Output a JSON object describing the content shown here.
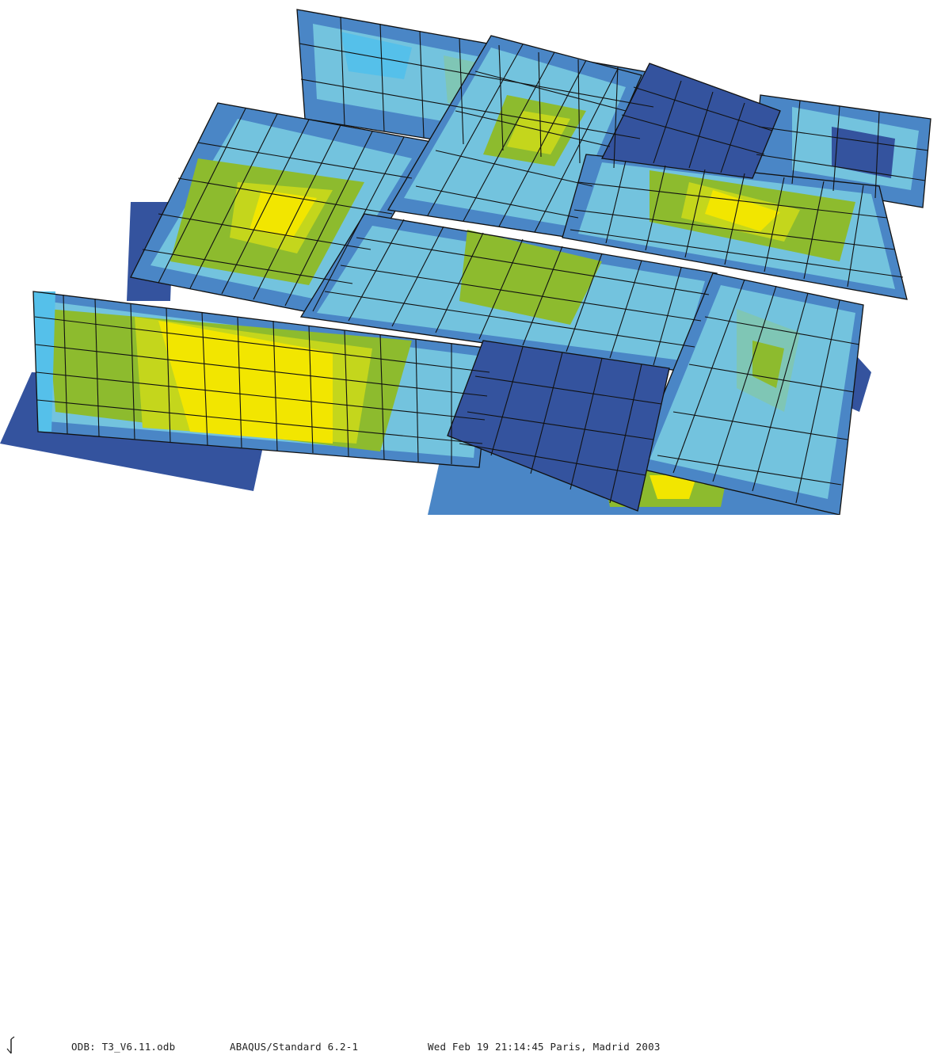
{
  "status": {
    "odb": "ODB: T3_V6.11.odb",
    "solver": "ABAQUS/Standard 6.2-1",
    "timestamp": "Wed Feb 19 21:14:45 Paris, Madrid 2003"
  },
  "legend_colors": {
    "deep_blue": "#34539e",
    "mid_blue": "#4a86c6",
    "light_blue": "#73c3de",
    "cyan_blue": "#55c0ea",
    "teal": "#7fc6b5",
    "green": "#8dbb2e",
    "lime": "#c4d61c",
    "yellow": "#f2e600"
  },
  "triad_icon": "coordinate-triad-icon"
}
